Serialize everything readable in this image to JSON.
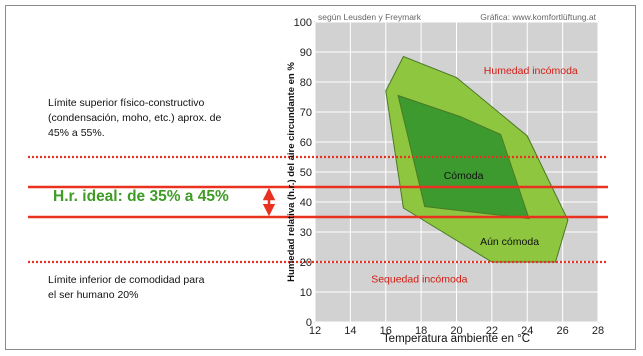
{
  "notes": {
    "upper": "Límite superior físico-constructivo\n(condensación, moho, etc.) aprox. de\n45% a 55%.",
    "lower": "Límite inferior de comodidad para\nel ser humano 20%",
    "ideal": "H.r. ideal: de 35% a 45%"
  },
  "colors": {
    "outer_zone": "#8ec63f",
    "inner_zone": "#3c9a2f",
    "zone_stroke": "#4a7a24",
    "plot_bg": "#d2d2d2",
    "grid": "#ffffff",
    "red": "#e8321f",
    "label_red": "#d41b12",
    "ideal_green": "#3f9c26"
  },
  "chart_data": {
    "type": "area",
    "title": "",
    "source_left": "según Leusden y Freymark",
    "source_right": "Gráfica: www.komfortlüftung.at",
    "xlabel": "Temperatura ambiente en °C",
    "ylabel": "Humedad relativa (h.r.) del aire circundante en %",
    "xlim": [
      12,
      28
    ],
    "ylim": [
      0,
      100
    ],
    "xticks": [
      12,
      14,
      16,
      18,
      20,
      22,
      24,
      26,
      28
    ],
    "yticks": [
      0,
      10,
      20,
      30,
      40,
      50,
      60,
      70,
      80,
      90,
      100
    ],
    "grid": true,
    "regions": [
      {
        "name": "Aún cómoda",
        "polygon": [
          [
            16,
            77
          ],
          [
            17,
            88.5
          ],
          [
            20,
            81.5
          ],
          [
            24,
            62
          ],
          [
            26.3,
            34
          ],
          [
            25.6,
            20
          ],
          [
            22,
            20
          ],
          [
            17,
            38
          ],
          [
            16,
            77
          ]
        ]
      },
      {
        "name": "Cómoda",
        "polygon": [
          [
            16.7,
            75.5
          ],
          [
            20.2,
            68.5
          ],
          [
            22.5,
            62.5
          ],
          [
            24.1,
            34.5
          ],
          [
            18.2,
            38.5
          ],
          [
            16.7,
            75.5
          ]
        ]
      }
    ],
    "region_labels": [
      {
        "text": "Humedad incómoda",
        "x": 24.2,
        "y": 84,
        "color": "red"
      },
      {
        "text": "Cómoda",
        "x": 20.4,
        "y": 49,
        "color": "black"
      },
      {
        "text": "Aún cómoda",
        "x": 23,
        "y": 27,
        "color": "black"
      },
      {
        "text": "Sequedad incómoda",
        "x": 17.9,
        "y": 14.5,
        "color": "red"
      }
    ],
    "reference_lines": [
      {
        "y": 55,
        "style": "dotted",
        "color": "red"
      },
      {
        "y": 45,
        "style": "solid",
        "color": "red"
      },
      {
        "y": 35,
        "style": "solid",
        "color": "red"
      },
      {
        "y": 20,
        "style": "dotted",
        "color": "red"
      }
    ],
    "ideal_range": [
      35,
      45
    ]
  }
}
